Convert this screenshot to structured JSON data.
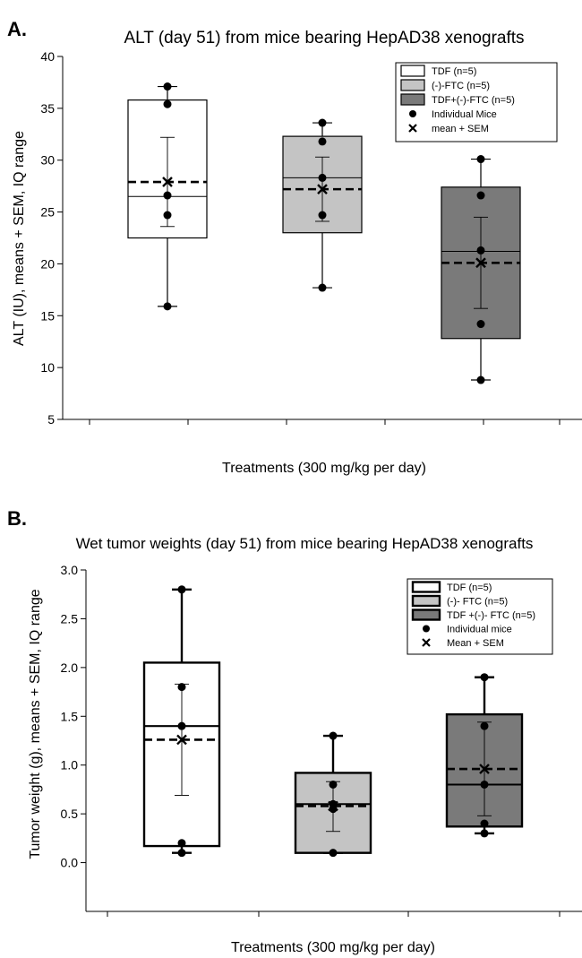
{
  "chart_data": [
    {
      "panel": "A.",
      "type": "box",
      "title": "ALT (day 51) from mice bearing HepAD38 xenografts",
      "xlabel": "Treatments (300 mg/kg per day)",
      "ylabel": "ALT (IU), means + SEM, IQ range",
      "ylim": [
        5,
        40
      ],
      "yticks": [
        5,
        10,
        15,
        20,
        25,
        30,
        35,
        40
      ],
      "legend_position": "top-right",
      "legend": [
        {
          "label": "TDF (n=5)",
          "symbol": "box",
          "fill": "#ffffff"
        },
        {
          "label": "(-)-FTC (n=5)",
          "symbol": "box",
          "fill": "#c4c4c4"
        },
        {
          "label": "TDF+(-)-FTC  (n=5)",
          "symbol": "box",
          "fill": "#7a7a7a"
        },
        {
          "label": "Individual Mice",
          "symbol": "dot"
        },
        {
          "label": "mean + SEM",
          "symbol": "cross"
        }
      ],
      "series": [
        {
          "name": "TDF (n=5)",
          "fill": "#ffffff",
          "q1": 22.5,
          "median": 26.5,
          "q3": 35.8,
          "whisker_low": 15.9,
          "whisker_high": 37.1,
          "mean": 27.9,
          "sem_low": 23.6,
          "sem_high": 32.2,
          "points": [
            37.1,
            35.4,
            26.6,
            24.7,
            15.9
          ]
        },
        {
          "name": "(-)-FTC (n=5)",
          "fill": "#c4c4c4",
          "q1": 23.0,
          "median": 28.3,
          "q3": 32.3,
          "whisker_low": 17.7,
          "whisker_high": 33.6,
          "mean": 27.2,
          "sem_low": 24.1,
          "sem_high": 30.3,
          "points": [
            33.6,
            31.8,
            28.3,
            24.7,
            17.7
          ]
        },
        {
          "name": "TDF+(-)-FTC  (n=5)",
          "fill": "#7a7a7a",
          "q1": 12.8,
          "median": 21.2,
          "q3": 27.4,
          "whisker_low": 8.8,
          "whisker_high": 30.1,
          "mean": 20.1,
          "sem_low": 15.7,
          "sem_high": 24.5,
          "points": [
            30.1,
            26.6,
            21.3,
            14.2,
            8.8
          ]
        }
      ]
    },
    {
      "panel": "B.",
      "type": "box",
      "title": "Wet tumor weights (day 51) from mice bearing HepAD38 xenografts",
      "xlabel": "Treatments (300 mg/kg per day)",
      "ylabel": "Tumor weight (g), means + SEM, IQ range",
      "ylim": [
        -0.5,
        3.0
      ],
      "yticks": [
        0.0,
        0.5,
        1.0,
        1.5,
        2.0,
        2.5,
        3.0
      ],
      "legend_position": "top-right",
      "legend": [
        {
          "label": "TDF (n=5)",
          "symbol": "box",
          "fill": "#ffffff"
        },
        {
          "label": "(-)- FTC (n=5)",
          "symbol": "box",
          "fill": "#c4c4c4"
        },
        {
          "label": "TDF +(-)- FTC (n=5)",
          "symbol": "box",
          "fill": "#7a7a7a"
        },
        {
          "label": "Individual mice",
          "symbol": "dot"
        },
        {
          "label": "Mean + SEM",
          "symbol": "cross"
        }
      ],
      "series": [
        {
          "name": "TDF (n=5)",
          "fill": "#ffffff",
          "q1": 0.17,
          "median": 1.4,
          "q3": 2.05,
          "whisker_low": 0.1,
          "whisker_high": 2.8,
          "mean": 1.26,
          "sem_low": 0.69,
          "sem_high": 1.83,
          "points": [
            2.8,
            1.8,
            1.4,
            0.2,
            0.1
          ]
        },
        {
          "name": "(-)- FTC (n=5)",
          "fill": "#c4c4c4",
          "q1": 0.1,
          "median": 0.6,
          "q3": 0.92,
          "whisker_low": 0.1,
          "whisker_high": 1.3,
          "mean": 0.58,
          "sem_low": 0.32,
          "sem_high": 0.83,
          "points": [
            1.3,
            0.8,
            0.6,
            0.55,
            0.1
          ]
        },
        {
          "name": "TDF +(-)- FTC (n=5)",
          "fill": "#7a7a7a",
          "q1": 0.37,
          "median": 0.8,
          "q3": 1.52,
          "whisker_low": 0.3,
          "whisker_high": 1.9,
          "mean": 0.96,
          "sem_low": 0.48,
          "sem_high": 1.44,
          "points": [
            1.9,
            1.4,
            0.8,
            0.4,
            0.3
          ]
        }
      ]
    }
  ]
}
